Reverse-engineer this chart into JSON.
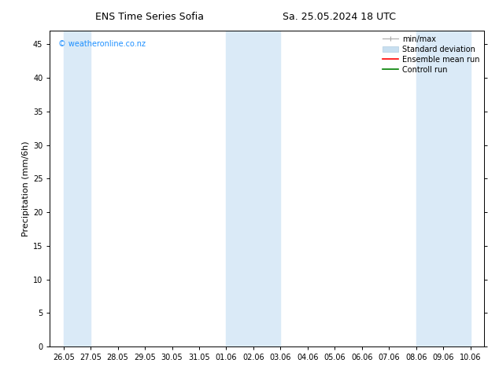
{
  "title_left": "ENS Time Series Sofia",
  "title_right": "Sa. 25.05.2024 18 UTC",
  "ylabel": "Precipitation (mm/6h)",
  "ylim": [
    0,
    47
  ],
  "yticks": [
    0,
    5,
    10,
    15,
    20,
    25,
    30,
    35,
    40,
    45
  ],
  "xtick_labels": [
    "26.05",
    "27.05",
    "28.05",
    "29.05",
    "30.05",
    "31.05",
    "01.06",
    "02.06",
    "03.06",
    "04.06",
    "05.06",
    "06.06",
    "07.06",
    "08.06",
    "09.06",
    "10.06"
  ],
  "band_color": "#daeaf7",
  "band_definitions": [
    [
      "26.05",
      "27.05"
    ],
    [
      "01.06",
      "03.06"
    ],
    [
      "08.06",
      "10.06"
    ]
  ],
  "background_color": "#ffffff",
  "watermark": "© weatheronline.co.nz",
  "watermark_color": "#1e90ff",
  "legend_entries": [
    {
      "label": "min/max",
      "color": "#aaaaaa"
    },
    {
      "label": "Standard deviation",
      "color": "#c8dff0"
    },
    {
      "label": "Ensemble mean run",
      "color": "#ff0000"
    },
    {
      "label": "Controll run",
      "color": "#008000"
    }
  ],
  "title_fontsize": 9,
  "tick_fontsize": 7,
  "ylabel_fontsize": 8,
  "legend_fontsize": 7,
  "watermark_fontsize": 7
}
